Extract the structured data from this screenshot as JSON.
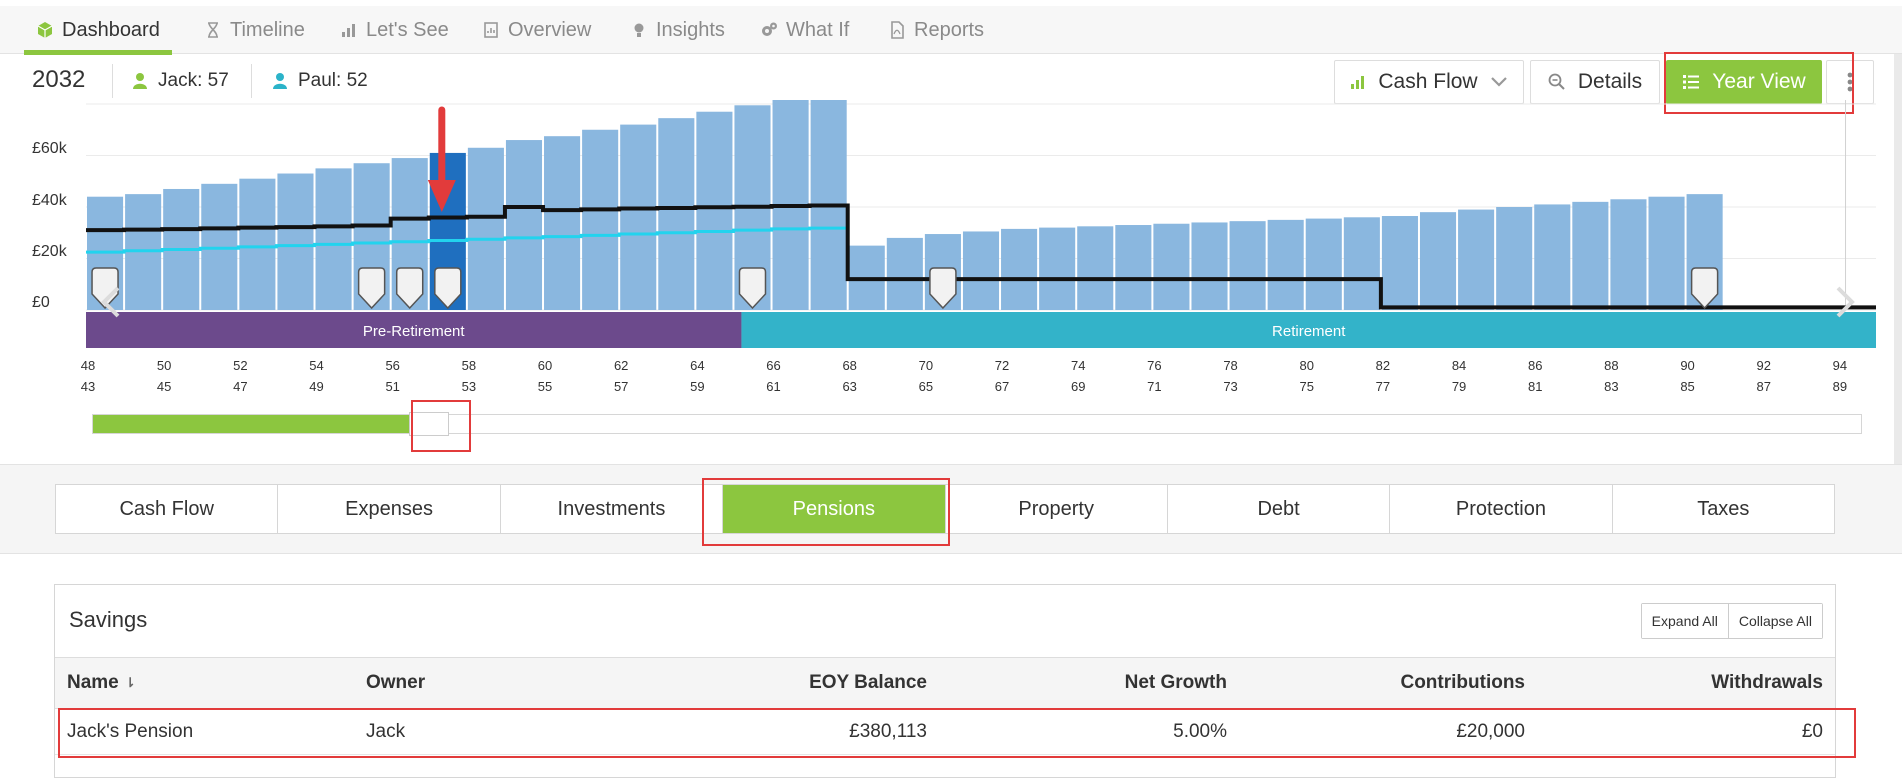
{
  "nav": {
    "tabs": [
      {
        "label": "Dashboard",
        "icon": "cube-icon",
        "active": true
      },
      {
        "label": "Timeline",
        "icon": "hourglass-icon",
        "active": false
      },
      {
        "label": "Let's See",
        "icon": "bar-chart-icon",
        "active": false
      },
      {
        "label": "Overview",
        "icon": "report-icon",
        "active": false
      },
      {
        "label": "Insights",
        "icon": "lightbulb-icon",
        "active": false
      },
      {
        "label": "What If",
        "icon": "cogs-icon",
        "active": false
      },
      {
        "label": "Reports",
        "icon": "pdf-icon",
        "active": false
      }
    ]
  },
  "header": {
    "year": "2032",
    "people": [
      {
        "name": "Jack:",
        "age": "57",
        "color": "#8cc63f"
      },
      {
        "name": "Paul:",
        "age": "52",
        "color": "#2bb3c9"
      }
    ],
    "view_select": "Cash Flow",
    "details_label": "Details",
    "year_view_label": "Year View"
  },
  "chart_data": {
    "type": "bar",
    "y_tick_labels": [
      "£0",
      "£20k",
      "£40k",
      "£60k"
    ],
    "ylim": [
      0,
      80000
    ],
    "bars_gbp": [
      44000,
      45000,
      47000,
      49000,
      51000,
      53000,
      55000,
      57000,
      59000,
      61000,
      63000,
      66000,
      67500,
      70000,
      72000,
      74500,
      77000,
      79500,
      82500,
      86000,
      25000,
      28000,
      29500,
      30500,
      31500,
      32000,
      32500,
      33000,
      33500,
      34000,
      34500,
      35000,
      35500,
      36000,
      36500,
      38000,
      39000,
      40000,
      41000,
      42000,
      43000,
      44000,
      45000
    ],
    "highlight_age": 57,
    "black_line_gbp": [
      31000,
      31200,
      31400,
      31700,
      32000,
      32200,
      32500,
      32800,
      35500,
      35900,
      36200,
      40000,
      38800,
      39100,
      39400,
      39600,
      39900,
      40100,
      40400,
      40600,
      12000,
      12000,
      12000,
      12000,
      12000,
      12000,
      12000,
      12000,
      12000,
      12000,
      12000,
      12000,
      12000,
      12000,
      1000,
      1000,
      1000,
      1000,
      1000,
      1000,
      1000,
      1000,
      1000,
      1000,
      1000,
      1000,
      1000
    ],
    "cyan_line_gbp": [
      22500,
      23000,
      23500,
      24000,
      24500,
      25000,
      25500,
      26000,
      26500,
      27000,
      27500,
      28000,
      28500,
      29000,
      29500,
      30000,
      30500,
      31000,
      31500,
      31800
    ],
    "event_marker_ages": [
      48,
      55,
      56,
      57,
      65,
      70,
      90
    ],
    "phases": [
      {
        "label": "Pre-Retirement",
        "color": "#6c4a8c"
      },
      {
        "label": "Retirement",
        "color": "#33b3c9"
      }
    ],
    "x_ages_jack": [
      "48",
      "50",
      "52",
      "54",
      "56",
      "58",
      "60",
      "62",
      "64",
      "66",
      "68",
      "70",
      "72",
      "74",
      "76",
      "78",
      "80",
      "82",
      "84",
      "86",
      "88",
      "90",
      "92",
      "94"
    ],
    "x_ages_paul": [
      "43",
      "45",
      "47",
      "49",
      "51",
      "53",
      "55",
      "57",
      "59",
      "61",
      "63",
      "65",
      "67",
      "69",
      "71",
      "73",
      "75",
      "77",
      "79",
      "81",
      "83",
      "85",
      "87",
      "89"
    ],
    "colors": {
      "bar": "#8ab7df",
      "bar_highlight": "#1f6fbf",
      "line": "#111111",
      "cyan": "#22d3ee",
      "arrow": "#e23b3b"
    }
  },
  "scrubber": {
    "progress_fraction": 0.18
  },
  "subtabs": [
    {
      "label": "Cash Flow",
      "active": false
    },
    {
      "label": "Expenses",
      "active": false
    },
    {
      "label": "Investments",
      "active": false
    },
    {
      "label": "Pensions",
      "active": true
    },
    {
      "label": "Property",
      "active": false
    },
    {
      "label": "Debt",
      "active": false
    },
    {
      "label": "Protection",
      "active": false
    },
    {
      "label": "Taxes",
      "active": false
    }
  ],
  "savings": {
    "title": "Savings",
    "expand_all": "Expand All",
    "collapse_all": "Collapse All",
    "columns": [
      "Name",
      "Owner",
      "EOY Balance",
      "Net Growth",
      "Contributions",
      "Withdrawals"
    ],
    "sort_icon": "⇂",
    "rows": [
      {
        "name": "Jack's Pension",
        "owner": "Jack",
        "eoy_balance": "£380,113",
        "net_growth": "5.00%",
        "contributions": "£20,000",
        "withdrawals": "£0"
      }
    ]
  },
  "accent": "#8cc63f"
}
